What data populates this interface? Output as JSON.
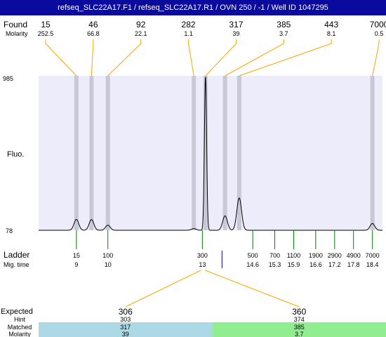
{
  "header": {
    "title": "refseq_SLC22A17.F1 / refseq_SLC22A17.R1 / OVN 250 / -1 / Well ID 1047295"
  },
  "labels": {
    "found": "Found",
    "molarity": "Molarity",
    "fluo": "Fluo.",
    "ladder": "Ladder",
    "mig_time": "Mig. time",
    "expected": "Expected",
    "hint": "Hint",
    "matched": "Matched",
    "molarity_bottom": "Molarity"
  },
  "chart_data": {
    "type": "line",
    "title": "",
    "ylabel": "Fluo.",
    "ylim": [
      78,
      985
    ],
    "y_ticks": [
      "985",
      "78"
    ],
    "found_peaks": [
      {
        "size": "15",
        "molarity": "252.5",
        "mig_time": 9.0,
        "height": 142
      },
      {
        "size": "46",
        "molarity": "66.8",
        "mig_time": 9.48,
        "height": 141
      },
      {
        "size": "92",
        "molarity": "22.1",
        "mig_time": 10.0,
        "height": 108
      },
      {
        "size": "282",
        "molarity": "1.1",
        "mig_time": 12.73,
        "height": 88
      },
      {
        "size": "317",
        "molarity": "39",
        "mig_time": 13.1,
        "height": 985
      },
      {
        "size": "385",
        "molarity": "3.7",
        "mig_time": 13.72,
        "height": 163
      },
      {
        "size": "443",
        "molarity": "8.1",
        "mig_time": 14.17,
        "height": 268
      },
      {
        "size": "7000",
        "molarity": "0.5",
        "mig_time": 18.4,
        "height": 118
      }
    ],
    "ladder": [
      {
        "size": "15",
        "mig_time": "9"
      },
      {
        "size": "100",
        "mig_time": "10"
      },
      {
        "size": "300",
        "mig_time": "13"
      },
      {
        "size": "500",
        "mig_time": "14.6"
      },
      {
        "size": "700",
        "mig_time": "15.3"
      },
      {
        "size": "1100",
        "mig_time": "15.9"
      },
      {
        "size": "1900",
        "mig_time": "16.6"
      },
      {
        "size": "2900",
        "mig_time": "17.2"
      },
      {
        "size": "4900",
        "mig_time": "17.8"
      },
      {
        "size": "7000",
        "mig_time": "18.4"
      }
    ],
    "expected": [
      {
        "expected": "306",
        "hint": "303",
        "matched": "317",
        "molarity": "39",
        "color": "#add8e6",
        "target_mig_time": 13.1
      },
      {
        "expected": "360",
        "hint": "374",
        "matched": "385",
        "molarity": "3.7",
        "color": "#90ee90",
        "target_mig_time": 13.72
      }
    ]
  },
  "colors": {
    "title_bar": "#0a0a9e",
    "plot_bg": "#ececfa",
    "connector": "#ffa500",
    "ladder_tick": "#008000",
    "band": "#c8c8d8",
    "trace": "#000000",
    "marker": "#00008b"
  }
}
